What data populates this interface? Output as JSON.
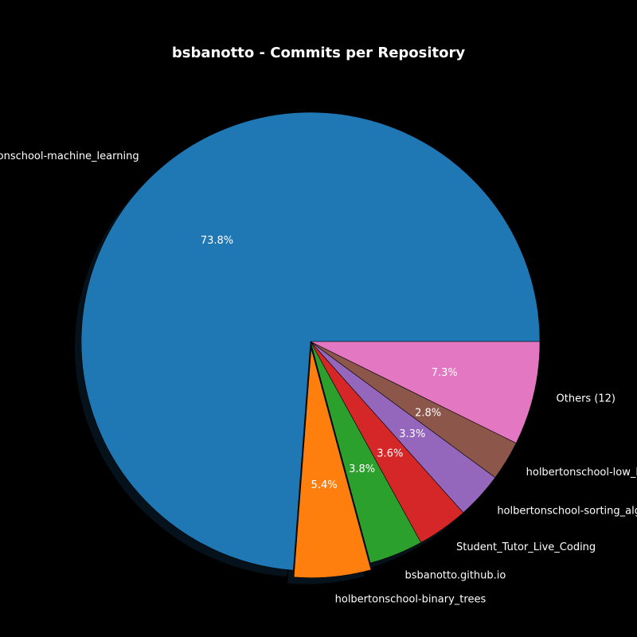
{
  "chart_data": {
    "type": "pie",
    "title": "bsbanotto - Commits per Repository",
    "categories": [
      "holbertonschool-machine_learning",
      "holbertonschool-binary_trees",
      "bsbanotto.github.io",
      "Student_Tutor_Live_Coding",
      "holbertonschool-sorting_algorithms",
      "holbertonschool-low_level_programming",
      "Others (12)"
    ],
    "values": [
      73.8,
      5.4,
      3.8,
      3.6,
      3.3,
      2.8,
      7.3
    ],
    "percent_labels": [
      "73.8%",
      "5.4%",
      "3.8%",
      "3.6%",
      "3.3%",
      "2.8%",
      "7.3%"
    ],
    "colors": [
      "#1f77b4",
      "#ff7f0e",
      "#2ca02c",
      "#d62728",
      "#9467bd",
      "#8c564b",
      "#e377c2"
    ],
    "start_angle_deg": 0,
    "direction": "counterclockwise",
    "explode": [
      0,
      0.03,
      0,
      0,
      0,
      0,
      0
    ],
    "shadow": true,
    "background": "#000000"
  }
}
